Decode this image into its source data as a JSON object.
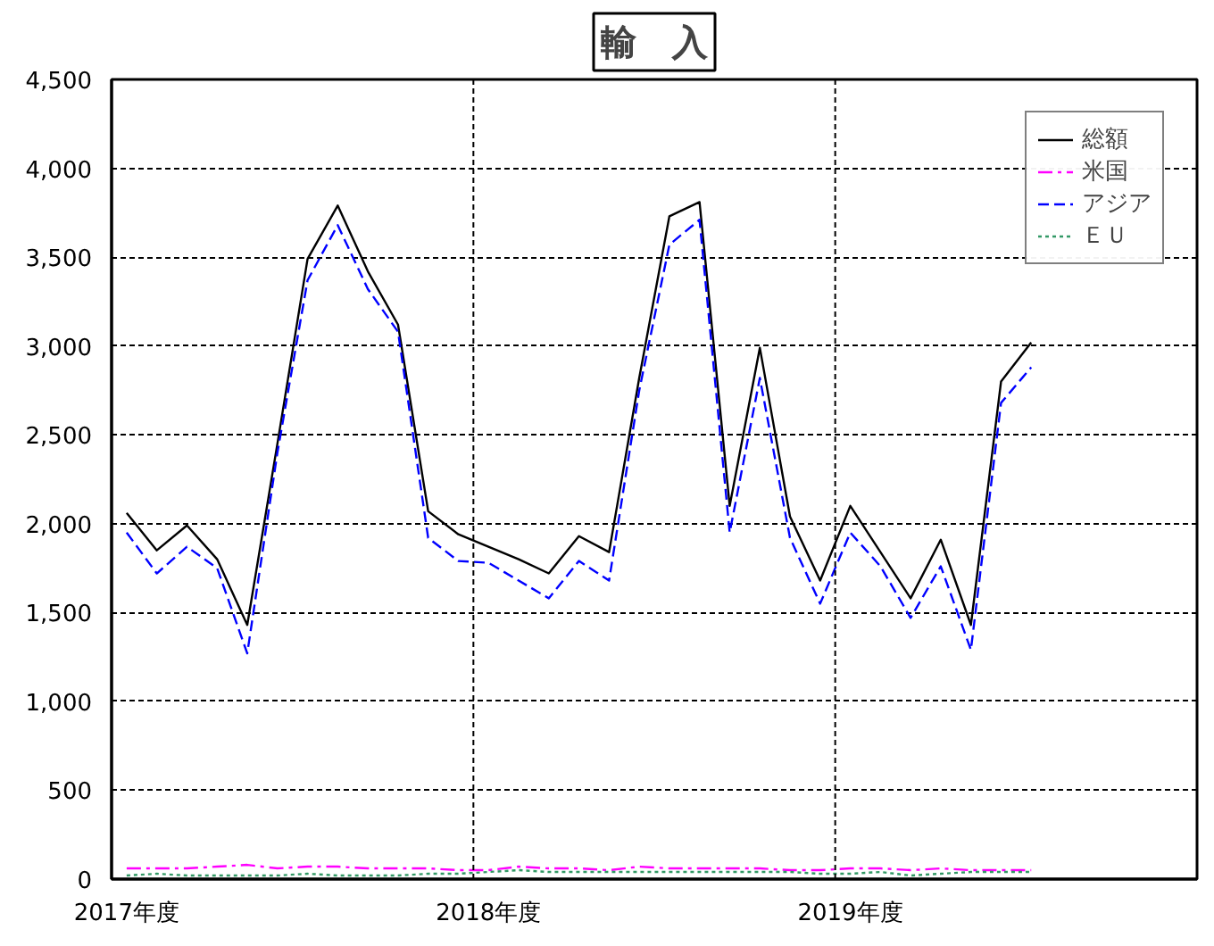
{
  "chart_data": {
    "type": "line",
    "title": "輸　入",
    "categories": [
      "2017年度",
      null,
      null,
      null,
      null,
      null,
      null,
      null,
      null,
      null,
      null,
      null,
      "2018年度",
      null,
      null,
      null,
      null,
      null,
      null,
      null,
      null,
      null,
      null,
      null,
      "2019年度",
      null,
      null,
      null,
      null,
      null,
      null,
      null,
      null,
      null,
      null,
      null
    ],
    "series": [
      {
        "name": "総額",
        "color": "#000000",
        "line_style": "solid",
        "values": [
          2060,
          1850,
          1990,
          1800,
          1430,
          2450,
          3490,
          3790,
          3420,
          3120,
          2070,
          1940,
          1870,
          1800,
          1720,
          1930,
          1840,
          2820,
          3730,
          3810,
          2100,
          2990,
          2040,
          1680,
          2100,
          1840,
          1580,
          1910,
          1430,
          2800,
          3020,
          null,
          null,
          null,
          null,
          null
        ]
      },
      {
        "name": "米国",
        "color": "#ff00ff",
        "line_style": "dashdot",
        "values": [
          60,
          60,
          60,
          70,
          80,
          60,
          70,
          70,
          60,
          60,
          60,
          50,
          50,
          70,
          60,
          60,
          50,
          70,
          60,
          60,
          60,
          60,
          50,
          50,
          60,
          60,
          50,
          60,
          50,
          50,
          50,
          null,
          null,
          null,
          null,
          null
        ]
      },
      {
        "name": "アジア",
        "color": "#0000ff",
        "line_style": "dashed",
        "values": [
          1950,
          1720,
          1870,
          1750,
          1270,
          2400,
          3370,
          3680,
          3320,
          3080,
          1920,
          1790,
          1780,
          1680,
          1580,
          1790,
          1680,
          2750,
          3570,
          3710,
          1950,
          2820,
          1920,
          1550,
          1950,
          1760,
          1470,
          1760,
          1290,
          2680,
          2880,
          null,
          null,
          null,
          null,
          null
        ]
      },
      {
        "name": "ＥＵ",
        "color": "#339966",
        "line_style": "dotted",
        "values": [
          20,
          30,
          20,
          20,
          20,
          20,
          30,
          20,
          20,
          20,
          30,
          30,
          40,
          50,
          40,
          40,
          40,
          40,
          40,
          40,
          40,
          40,
          40,
          30,
          30,
          40,
          20,
          30,
          40,
          40,
          40,
          null,
          null,
          null,
          null,
          null
        ]
      }
    ],
    "ylim": [
      0,
      4500
    ],
    "yticks": [
      0,
      500,
      {
        "value": 1000,
        "label": "1,000"
      },
      {
        "value": 1500,
        "label": "1,500"
      },
      {
        "value": 2000,
        "label": "2,000"
      },
      {
        "value": 2500,
        "label": "2,500"
      },
      {
        "value": 3000,
        "label": "3,000"
      },
      {
        "value": 3500,
        "label": "3,500"
      },
      {
        "value": 4000,
        "label": "4,000"
      },
      {
        "value": 4500,
        "label": "4,500"
      }
    ],
    "grid": true,
    "legend": "top right"
  }
}
